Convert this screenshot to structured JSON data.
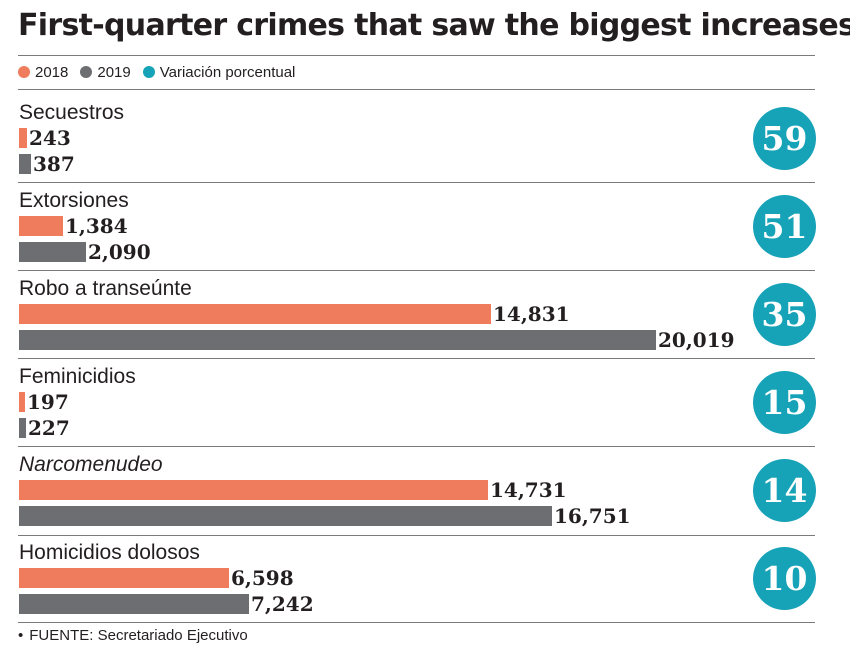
{
  "colors": {
    "y2018": "#f07c5e",
    "y2019": "#6d6e71",
    "pct": "#17a3b7"
  },
  "chart_data": {
    "type": "bar",
    "title": "First-quarter crimes that saw the biggest increases",
    "legend": [
      {
        "label": "2018",
        "color": "#f07c5e"
      },
      {
        "label": "2019",
        "color": "#6d6e71"
      },
      {
        "label": "Variación porcentual",
        "color": "#17a3b7"
      }
    ],
    "categories": [
      "Secuestros",
      "Extorsiones",
      "Robo a transeúnte",
      "Feminicidios",
      "Narcomenudeo",
      "Homicidios dolosos"
    ],
    "categories_italic": [
      false,
      false,
      false,
      false,
      true,
      false
    ],
    "series": [
      {
        "name": "2018",
        "values": [
          243,
          1384,
          14831,
          197,
          14731,
          6598
        ],
        "labels": [
          "243",
          "1,384",
          "14,831",
          "197",
          "14,731",
          "6,598"
        ]
      },
      {
        "name": "2019",
        "values": [
          387,
          2090,
          20019,
          227,
          16751,
          7242
        ],
        "labels": [
          "387",
          "2,090",
          "20,019",
          "227",
          "16,751",
          "7,242"
        ]
      }
    ],
    "percent_change": {
      "name": "Variación porcentual",
      "values": [
        59,
        51,
        35,
        15,
        14,
        10
      ]
    },
    "xlim": [
      0,
      20019
    ],
    "legend_position": "top-left",
    "grid": false
  },
  "source": "FUENTE: Secretariado Ejecutivo"
}
